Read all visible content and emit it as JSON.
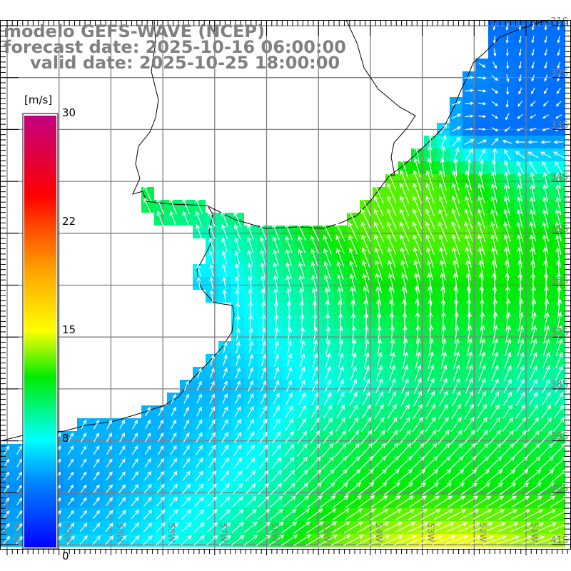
{
  "title": {
    "line1": "modelo GEFS-WAVE (NCEP)",
    "line2": "forecast date: 2025-10-16 06:00:00",
    "line3": "valid date: 2025-10-25 18:00:00"
  },
  "colorbar": {
    "unit": "[m/s]",
    "ticks": [
      {
        "value": 30,
        "label": "30"
      },
      {
        "value": 22,
        "label": "22"
      },
      {
        "value": 15,
        "label": "15"
      },
      {
        "value": 8,
        "label": "8"
      },
      {
        "value": 0,
        "label": "0"
      }
    ],
    "colors": [
      {
        "v": 0,
        "c": "#0000ff"
      },
      {
        "v": 5,
        "c": "#008cff"
      },
      {
        "v": 8,
        "c": "#00ffff"
      },
      {
        "v": 12,
        "c": "#00eb00"
      },
      {
        "v": 15,
        "c": "#ffff00"
      },
      {
        "v": 19,
        "c": "#ffa000"
      },
      {
        "v": 24,
        "c": "#ff0000"
      },
      {
        "v": 30,
        "c": "#c0007f"
      }
    ]
  },
  "axes": {
    "lon_labels": [
      "61W",
      "60W",
      "59W",
      "58W",
      "57W",
      "56W",
      "55W",
      "54W",
      "53W",
      "52W",
      "51W"
    ],
    "lat_labels": [
      "31S",
      "32S",
      "33S",
      "34S",
      "35S",
      "36S",
      "37S",
      "38S",
      "39S",
      "40S",
      "41S"
    ]
  },
  "chart_data": {
    "type": "vector-field",
    "quantity": "wind speed (m/s) and direction (deg toward, from north)",
    "lon": [
      -61,
      -60,
      -59,
      -58,
      -57,
      -56,
      -55,
      -54,
      -53,
      -52,
      -51
    ],
    "lat": [
      -31,
      -32,
      -33,
      -34,
      -35,
      -36,
      -37,
      -38,
      -39,
      -40,
      -41
    ],
    "speed_ms": [
      [
        9,
        9,
        9,
        9,
        9,
        9,
        9,
        8,
        6,
        4,
        4
      ],
      [
        9,
        9,
        9,
        9,
        9,
        9,
        9,
        8,
        7,
        5,
        4
      ],
      [
        10,
        10,
        10,
        10,
        10,
        11,
        12,
        11,
        9,
        4,
        4
      ],
      [
        11,
        11,
        11,
        11,
        11,
        12,
        13,
        13,
        13,
        12,
        10
      ],
      [
        11,
        11,
        11,
        10,
        9,
        10,
        12,
        13,
        13,
        13,
        12
      ],
      [
        9,
        9,
        8,
        7,
        7,
        9,
        10,
        12,
        12,
        12,
        12
      ],
      [
        7,
        7,
        7,
        7,
        7,
        8,
        9,
        10,
        11,
        11,
        11
      ],
      [
        6,
        6,
        6,
        6,
        6,
        7,
        8,
        9,
        10,
        10,
        9
      ],
      [
        6,
        6,
        6,
        6,
        7,
        8,
        10,
        11,
        11,
        11,
        11
      ],
      [
        5,
        5,
        6,
        7,
        8,
        9,
        11,
        12,
        12,
        12,
        12
      ],
      [
        6,
        7,
        7,
        8,
        9,
        11,
        13,
        14,
        15,
        15,
        14
      ]
    ],
    "direction_deg": [
      [
        340,
        340,
        340,
        340,
        340,
        340,
        340,
        350,
        0,
        200,
        190
      ],
      [
        340,
        340,
        340,
        340,
        340,
        340,
        345,
        0,
        40,
        90,
        200
      ],
      [
        340,
        340,
        340,
        340,
        340,
        340,
        340,
        345,
        0,
        90,
        250
      ],
      [
        335,
        335,
        335,
        335,
        335,
        335,
        335,
        335,
        340,
        345,
        350
      ],
      [
        340,
        340,
        340,
        340,
        340,
        340,
        335,
        335,
        335,
        340,
        345
      ],
      [
        350,
        350,
        350,
        350,
        350,
        350,
        345,
        345,
        350,
        355,
        0
      ],
      [
        15,
        15,
        15,
        15,
        10,
        10,
        10,
        5,
        5,
        10,
        15
      ],
      [
        25,
        25,
        25,
        25,
        25,
        25,
        25,
        25,
        25,
        25,
        30
      ],
      [
        30,
        30,
        30,
        30,
        32,
        35,
        38,
        40,
        40,
        40,
        42
      ],
      [
        35,
        35,
        38,
        40,
        42,
        45,
        50,
        52,
        55,
        55,
        55
      ],
      [
        40,
        40,
        42,
        45,
        50,
        55,
        60,
        65,
        70,
        72,
        72
      ]
    ]
  }
}
